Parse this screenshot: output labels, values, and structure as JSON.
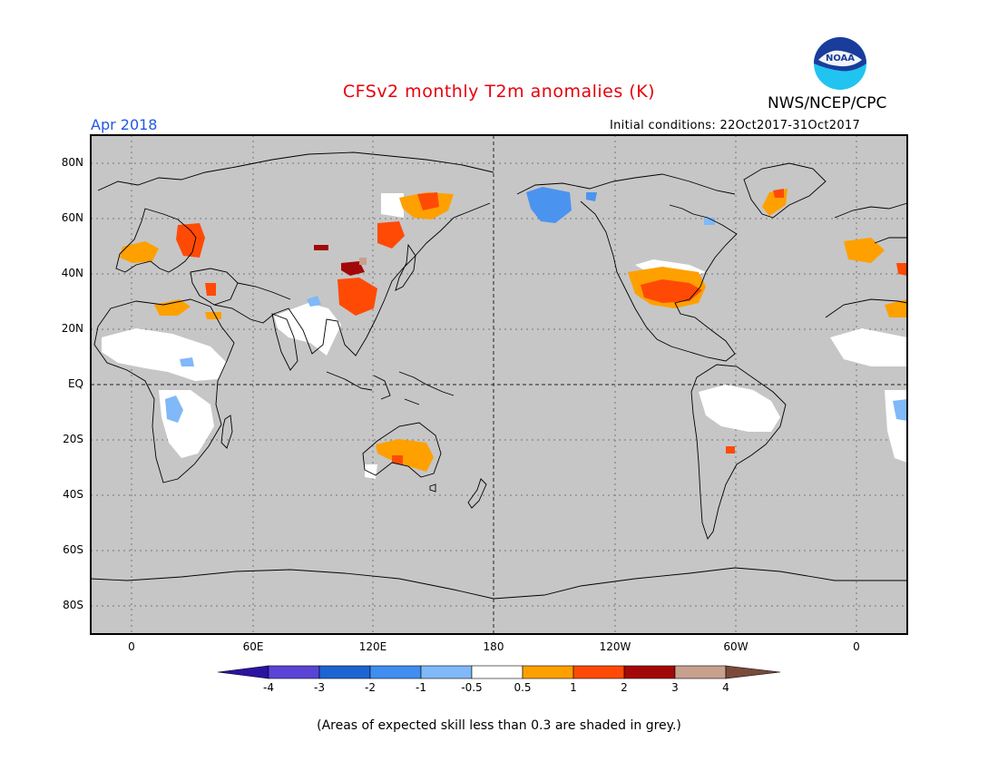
{
  "header": {
    "title": "CFSv2 monthly T2m anomalies (K)",
    "organization": "NWS/NCEP/CPC",
    "valid_month": "Apr 2018",
    "initial_conditions": "Initial conditions: 22Oct2017-31Oct2017",
    "logo_text": "NOAA"
  },
  "map": {
    "projection": "equirectangular",
    "lat_labels": [
      "80N",
      "60N",
      "40N",
      "20N",
      "EQ",
      "20S",
      "40S",
      "60S",
      "80S"
    ],
    "lon_labels": [
      "0",
      "60E",
      "120E",
      "180",
      "120W",
      "60W",
      "0"
    ],
    "background_note": "grey = low skill"
  },
  "colorbar": {
    "labels": [
      "-4",
      "-3",
      "-2",
      "-1",
      "-0.5",
      "0.5",
      "1",
      "2",
      "3",
      "4"
    ],
    "colors": [
      "#2d12a2",
      "#5a44d6",
      "#1d64d2",
      "#3f8ef0",
      "#80b8f8",
      "#ffffff",
      "#fea000",
      "#ff4a06",
      "#a30808",
      "#c8a08e",
      "#7b4a3a"
    ]
  },
  "footnote": "(Areas of expected skill less than 0.3 are shaded in grey.)",
  "colors": {
    "grey": "#c6c6c6",
    "title": "#e8000b",
    "valid": "#2258e6"
  }
}
